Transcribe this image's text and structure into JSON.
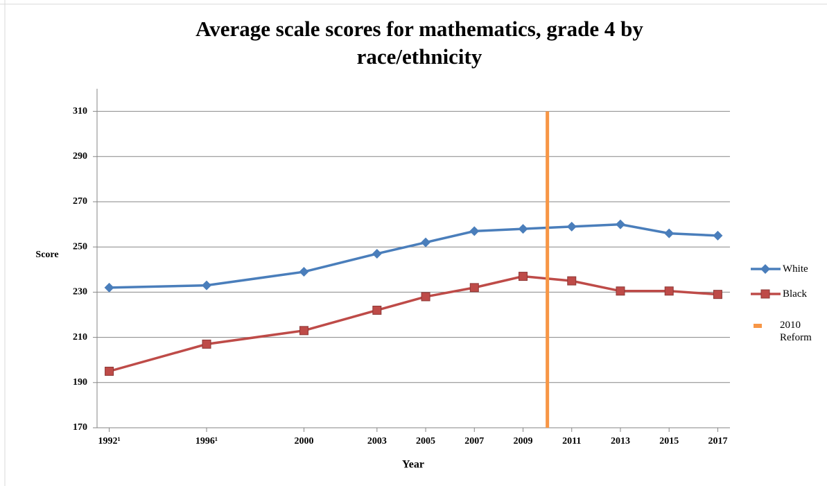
{
  "chart_data": {
    "type": "line",
    "title": "Average scale scores for mathematics, grade 4 by race/ethnicity",
    "x_label": "Year",
    "y_label": "Score",
    "x": [
      1992,
      1996,
      2000,
      2003,
      2005,
      2007,
      2009,
      2011,
      2013,
      2015,
      2017
    ],
    "xlim": [
      1991.5,
      2017.5
    ],
    "xticks": [
      {
        "value": 1992,
        "label": "1992¹"
      },
      {
        "value": 1996,
        "label": "1996¹"
      },
      2000,
      2003,
      2005,
      2007,
      2009,
      2011,
      2013,
      2015,
      2017
    ],
    "ylim": [
      170,
      320
    ],
    "yticks": [
      170,
      190,
      210,
      230,
      250,
      270,
      290,
      310
    ],
    "grid": true,
    "series": [
      {
        "name": "White",
        "color": "#4a7ebb",
        "marker": "diamond",
        "values": [
          232,
          233,
          239,
          247,
          252,
          257,
          258,
          259,
          260,
          256,
          255
        ]
      },
      {
        "name": "Black",
        "color": "#be4b48",
        "marker": "square",
        "values": [
          195,
          207,
          213,
          222,
          228,
          232,
          237,
          235,
          230.5,
          230.5,
          229
        ]
      },
      {
        "name": "2010 Reform",
        "color": "#f79646",
        "marker": "vline",
        "x": 2010
      }
    ],
    "legend": "right"
  }
}
